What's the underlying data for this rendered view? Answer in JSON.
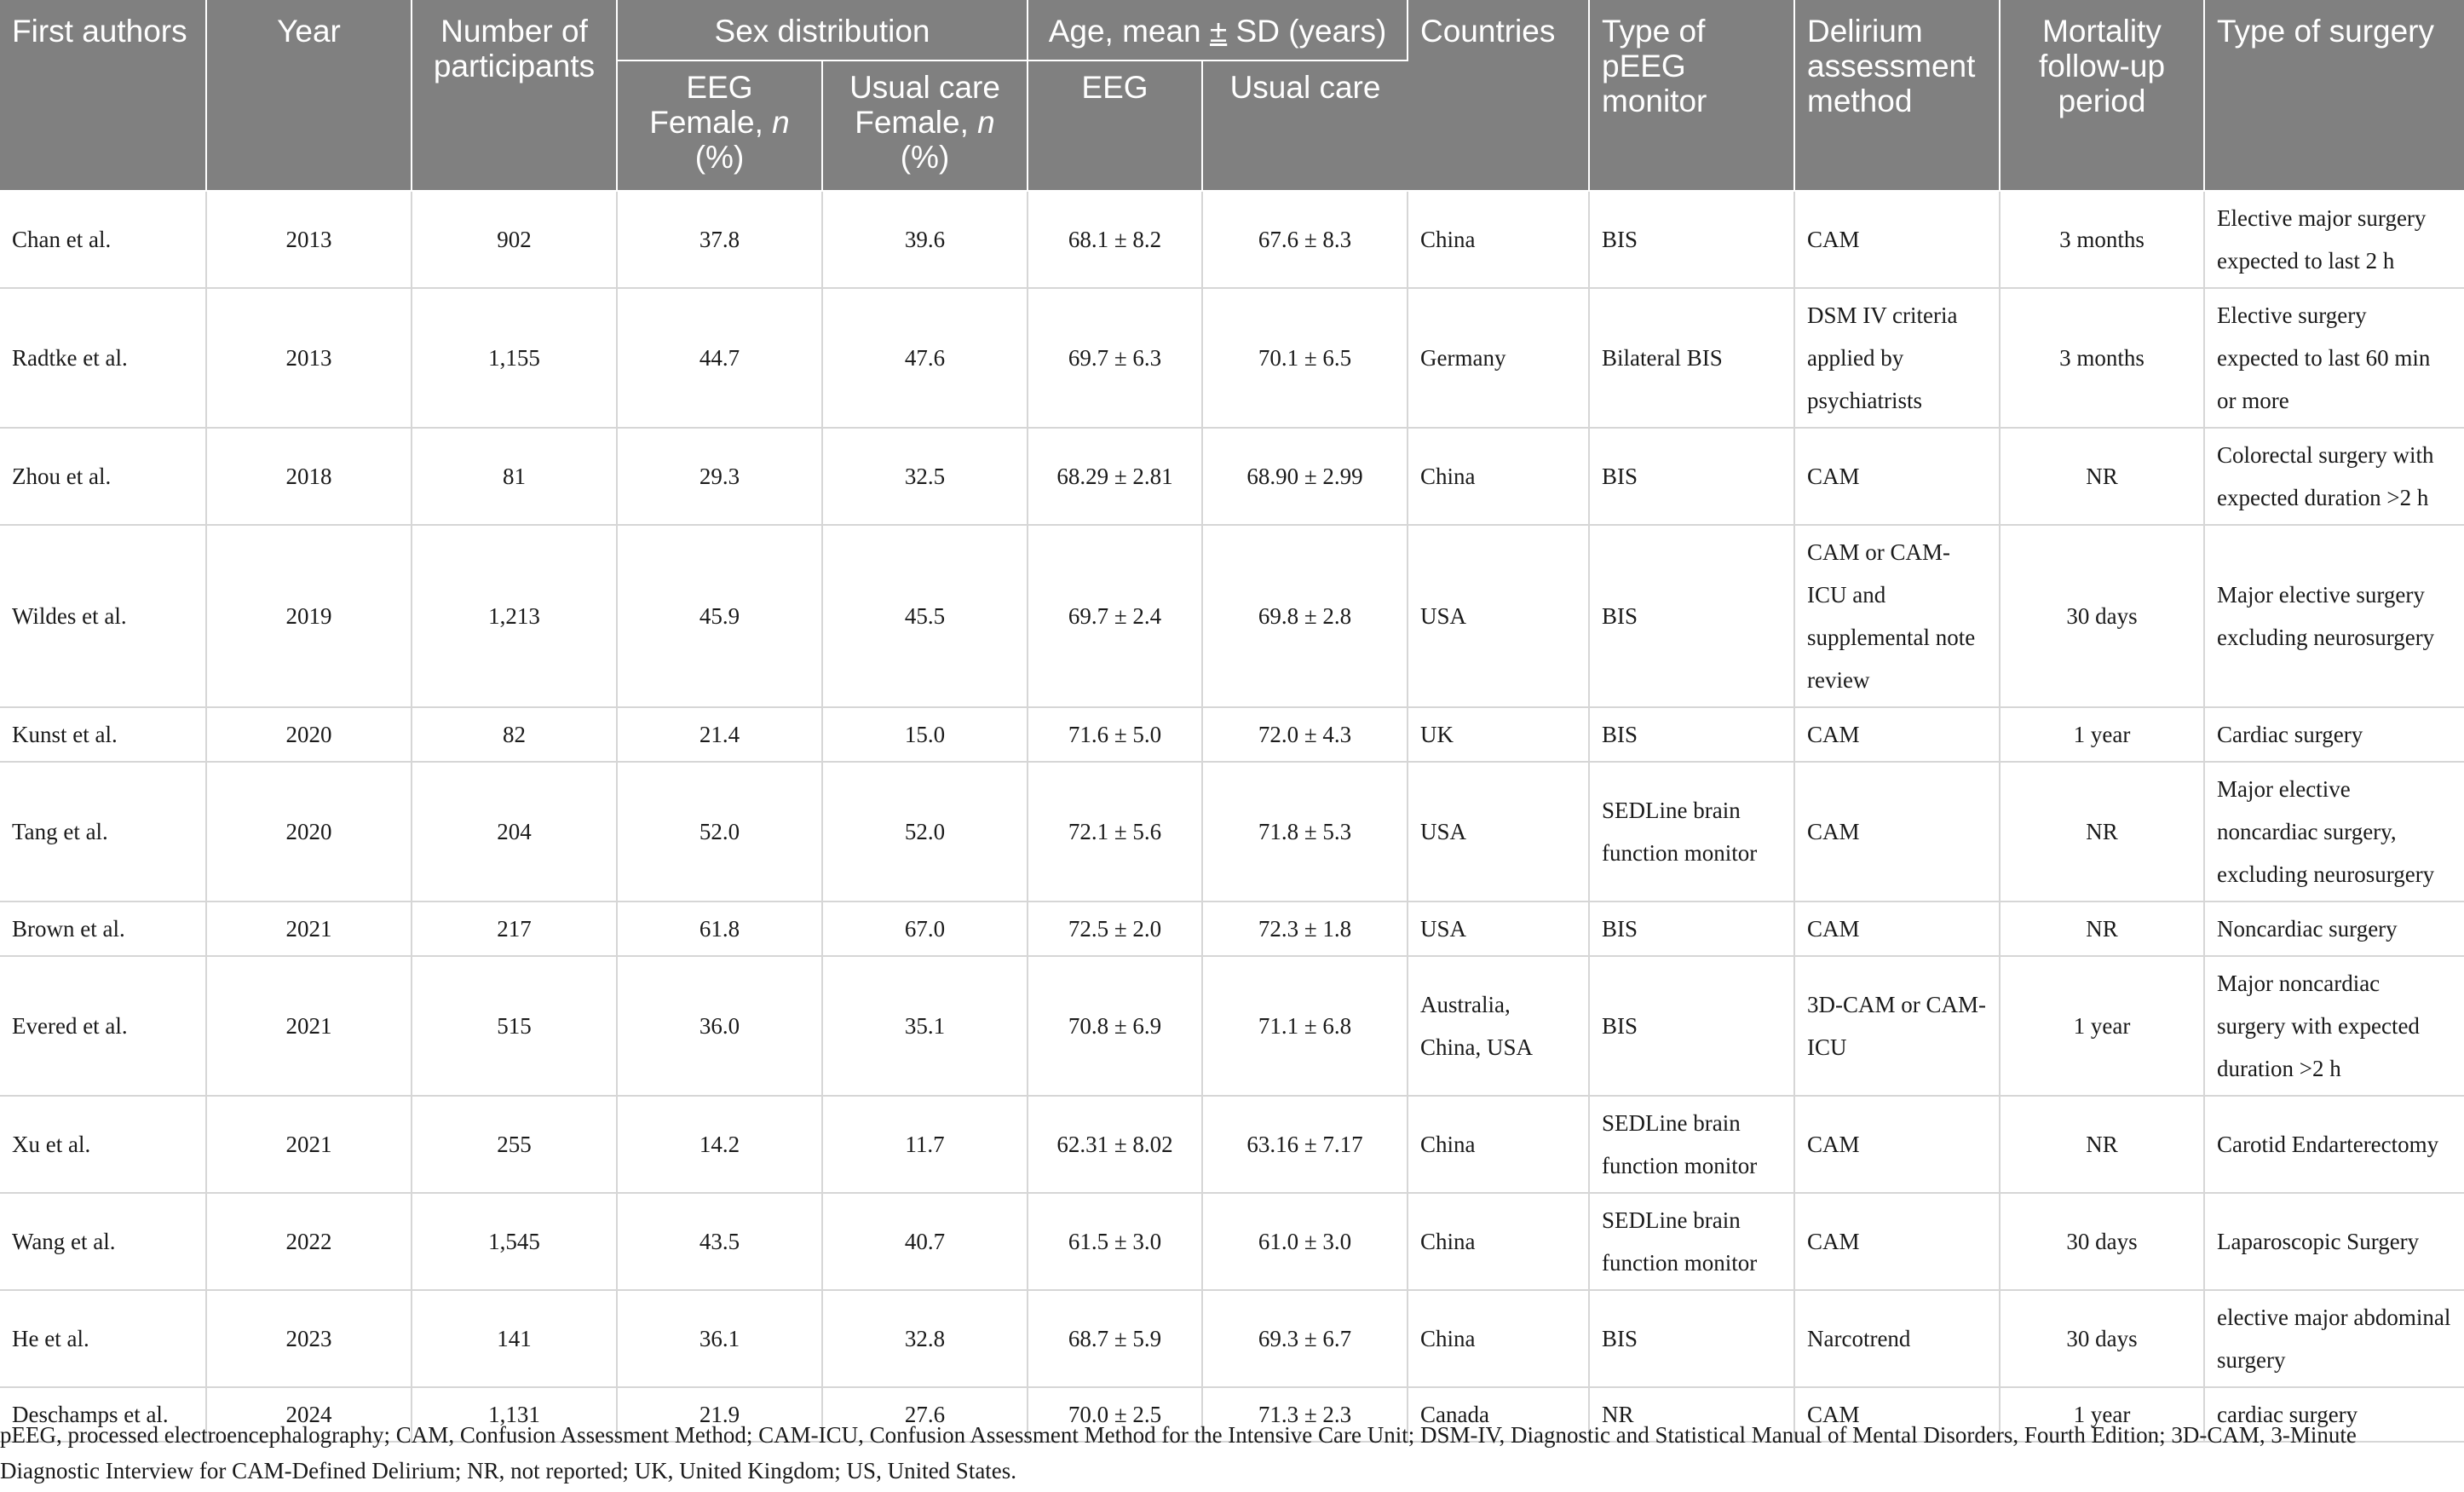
{
  "table": {
    "headers": {
      "first_authors": "First authors",
      "year": "Year",
      "participants": "Number of participants",
      "sex_distribution": "Sex distribution",
      "eeg_female_prefix": "EEG Female, ",
      "usual_female_prefix": "Usual care Female, ",
      "n_symbol": "n",
      "pct": "(%)",
      "age_prefix": "Age, mean ",
      "age_pm": "±",
      "age_suffix": " SD (years)",
      "age_eeg": "EEG",
      "age_usual": "Usual care",
      "countries": "Countries",
      "monitor": "Type of pEEG monitor",
      "delirium": "Delirium assessment method",
      "mortality": "Mortality follow-up period",
      "surgery": "Type of surgery"
    },
    "rows": [
      {
        "author": "Chan et al.",
        "year": "2013",
        "n": "902",
        "eeg_f": "37.8",
        "uc_f": "39.6",
        "age_eeg": "68.1 ± 8.2",
        "age_uc": "67.6 ± 8.3",
        "country": "China",
        "monitor": "BIS",
        "delirium": "CAM",
        "mortality": "3 months",
        "surgery": "Elective major surgery expected to last 2 h"
      },
      {
        "author": "Radtke et al.",
        "year": "2013",
        "n": "1,155",
        "eeg_f": "44.7",
        "uc_f": "47.6",
        "age_eeg": "69.7 ± 6.3",
        "age_uc": "70.1 ± 6.5",
        "country": "Germany",
        "monitor": "Bilateral BIS",
        "delirium": "DSM IV criteria applied by psychiatrists",
        "mortality": "3 months",
        "surgery": "Elective surgery expected to last 60 min or more"
      },
      {
        "author": "Zhou et al.",
        "year": "2018",
        "n": "81",
        "eeg_f": "29.3",
        "uc_f": "32.5",
        "age_eeg": "68.29 ± 2.81",
        "age_uc": "68.90 ± 2.99",
        "country": "China",
        "monitor": "BIS",
        "delirium": "CAM",
        "mortality": "NR",
        "surgery": "Colorectal surgery with expected duration >2 h"
      },
      {
        "author": "Wildes et al.",
        "year": "2019",
        "n": "1,213",
        "eeg_f": "45.9",
        "uc_f": "45.5",
        "age_eeg": "69.7 ± 2.4",
        "age_uc": "69.8 ± 2.8",
        "country": "USA",
        "monitor": "BIS",
        "delirium": "CAM or CAM-ICU and supplemental note review",
        "mortality": "30 days",
        "surgery": "Major elective surgery excluding neurosurgery"
      },
      {
        "author": "Kunst et al.",
        "year": "2020",
        "n": "82",
        "eeg_f": "21.4",
        "uc_f": "15.0",
        "age_eeg": "71.6 ± 5.0",
        "age_uc": "72.0 ± 4.3",
        "country": "UK",
        "monitor": "BIS",
        "delirium": "CAM",
        "mortality": "1 year",
        "surgery": "Cardiac surgery"
      },
      {
        "author": "Tang et al.",
        "year": "2020",
        "n": "204",
        "eeg_f": "52.0",
        "uc_f": "52.0",
        "age_eeg": "72.1 ± 5.6",
        "age_uc": "71.8 ± 5.3",
        "country": "USA",
        "monitor": "SEDLine brain function monitor",
        "delirium": "CAM",
        "mortality": "NR",
        "surgery": "Major elective noncardiac surgery, excluding neurosurgery"
      },
      {
        "author": "Brown et al.",
        "year": "2021",
        "n": "217",
        "eeg_f": "61.8",
        "uc_f": "67.0",
        "age_eeg": "72.5 ± 2.0",
        "age_uc": "72.3 ± 1.8",
        "country": "USA",
        "monitor": "BIS",
        "delirium": "CAM",
        "mortality": "NR",
        "surgery": "Noncardiac surgery"
      },
      {
        "author": "Evered et al.",
        "year": "2021",
        "n": "515",
        "eeg_f": "36.0",
        "uc_f": "35.1",
        "age_eeg": "70.8 ± 6.9",
        "age_uc": "71.1 ± 6.8",
        "country": "Australia, China, USA",
        "monitor": "BIS",
        "delirium": "3D-CAM or CAM-ICU",
        "mortality": "1 year",
        "surgery": "Major noncardiac surgery with expected duration >2 h"
      },
      {
        "author": "Xu et al.",
        "year": "2021",
        "n": "255",
        "eeg_f": "14.2",
        "uc_f": "11.7",
        "age_eeg": "62.31 ± 8.02",
        "age_uc": "63.16 ± 7.17",
        "country": "China",
        "monitor": "SEDLine brain function monitor",
        "delirium": "CAM",
        "mortality": "NR",
        "surgery": "Carotid Endarterectomy"
      },
      {
        "author": "Wang et al.",
        "year": "2022",
        "n": "1,545",
        "eeg_f": "43.5",
        "uc_f": "40.7",
        "age_eeg": "61.5 ± 3.0",
        "age_uc": "61.0 ± 3.0",
        "country": "China",
        "monitor": "SEDLine brain function monitor",
        "delirium": "CAM",
        "mortality": "30 days",
        "surgery": "Laparoscopic Surgery"
      },
      {
        "author": "He et al.",
        "year": "2023",
        "n": "141",
        "eeg_f": "36.1",
        "uc_f": "32.8",
        "age_eeg": "68.7 ± 5.9",
        "age_uc": "69.3 ± 6.7",
        "country": "China",
        "monitor": "BIS",
        "delirium": "Narcotrend",
        "mortality": "30 days",
        "surgery": "elective major abdominal surgery"
      },
      {
        "author": "Deschamps et al.",
        "year": "2024",
        "n": "1,131",
        "eeg_f": "21.9",
        "uc_f": "27.6",
        "age_eeg": "70.0 ± 2.5",
        "age_uc": "71.3 ± 2.3",
        "country": "Canada",
        "monitor": "NR",
        "delirium": "CAM",
        "mortality": "1 year",
        "surgery": "cardiac surgery"
      }
    ]
  },
  "footnote": "pEEG, processed electroencephalography; CAM, Confusion Assessment Method; CAM-ICU, Confusion Assessment Method for the Intensive Care Unit; DSM-IV, Diagnostic and Statistical Manual of Mental Disorders, Fourth Edition; 3D-CAM, 3-Minute Diagnostic Interview for CAM-Defined Delirium; NR, not reported; UK, United Kingdom; US, United States."
}
